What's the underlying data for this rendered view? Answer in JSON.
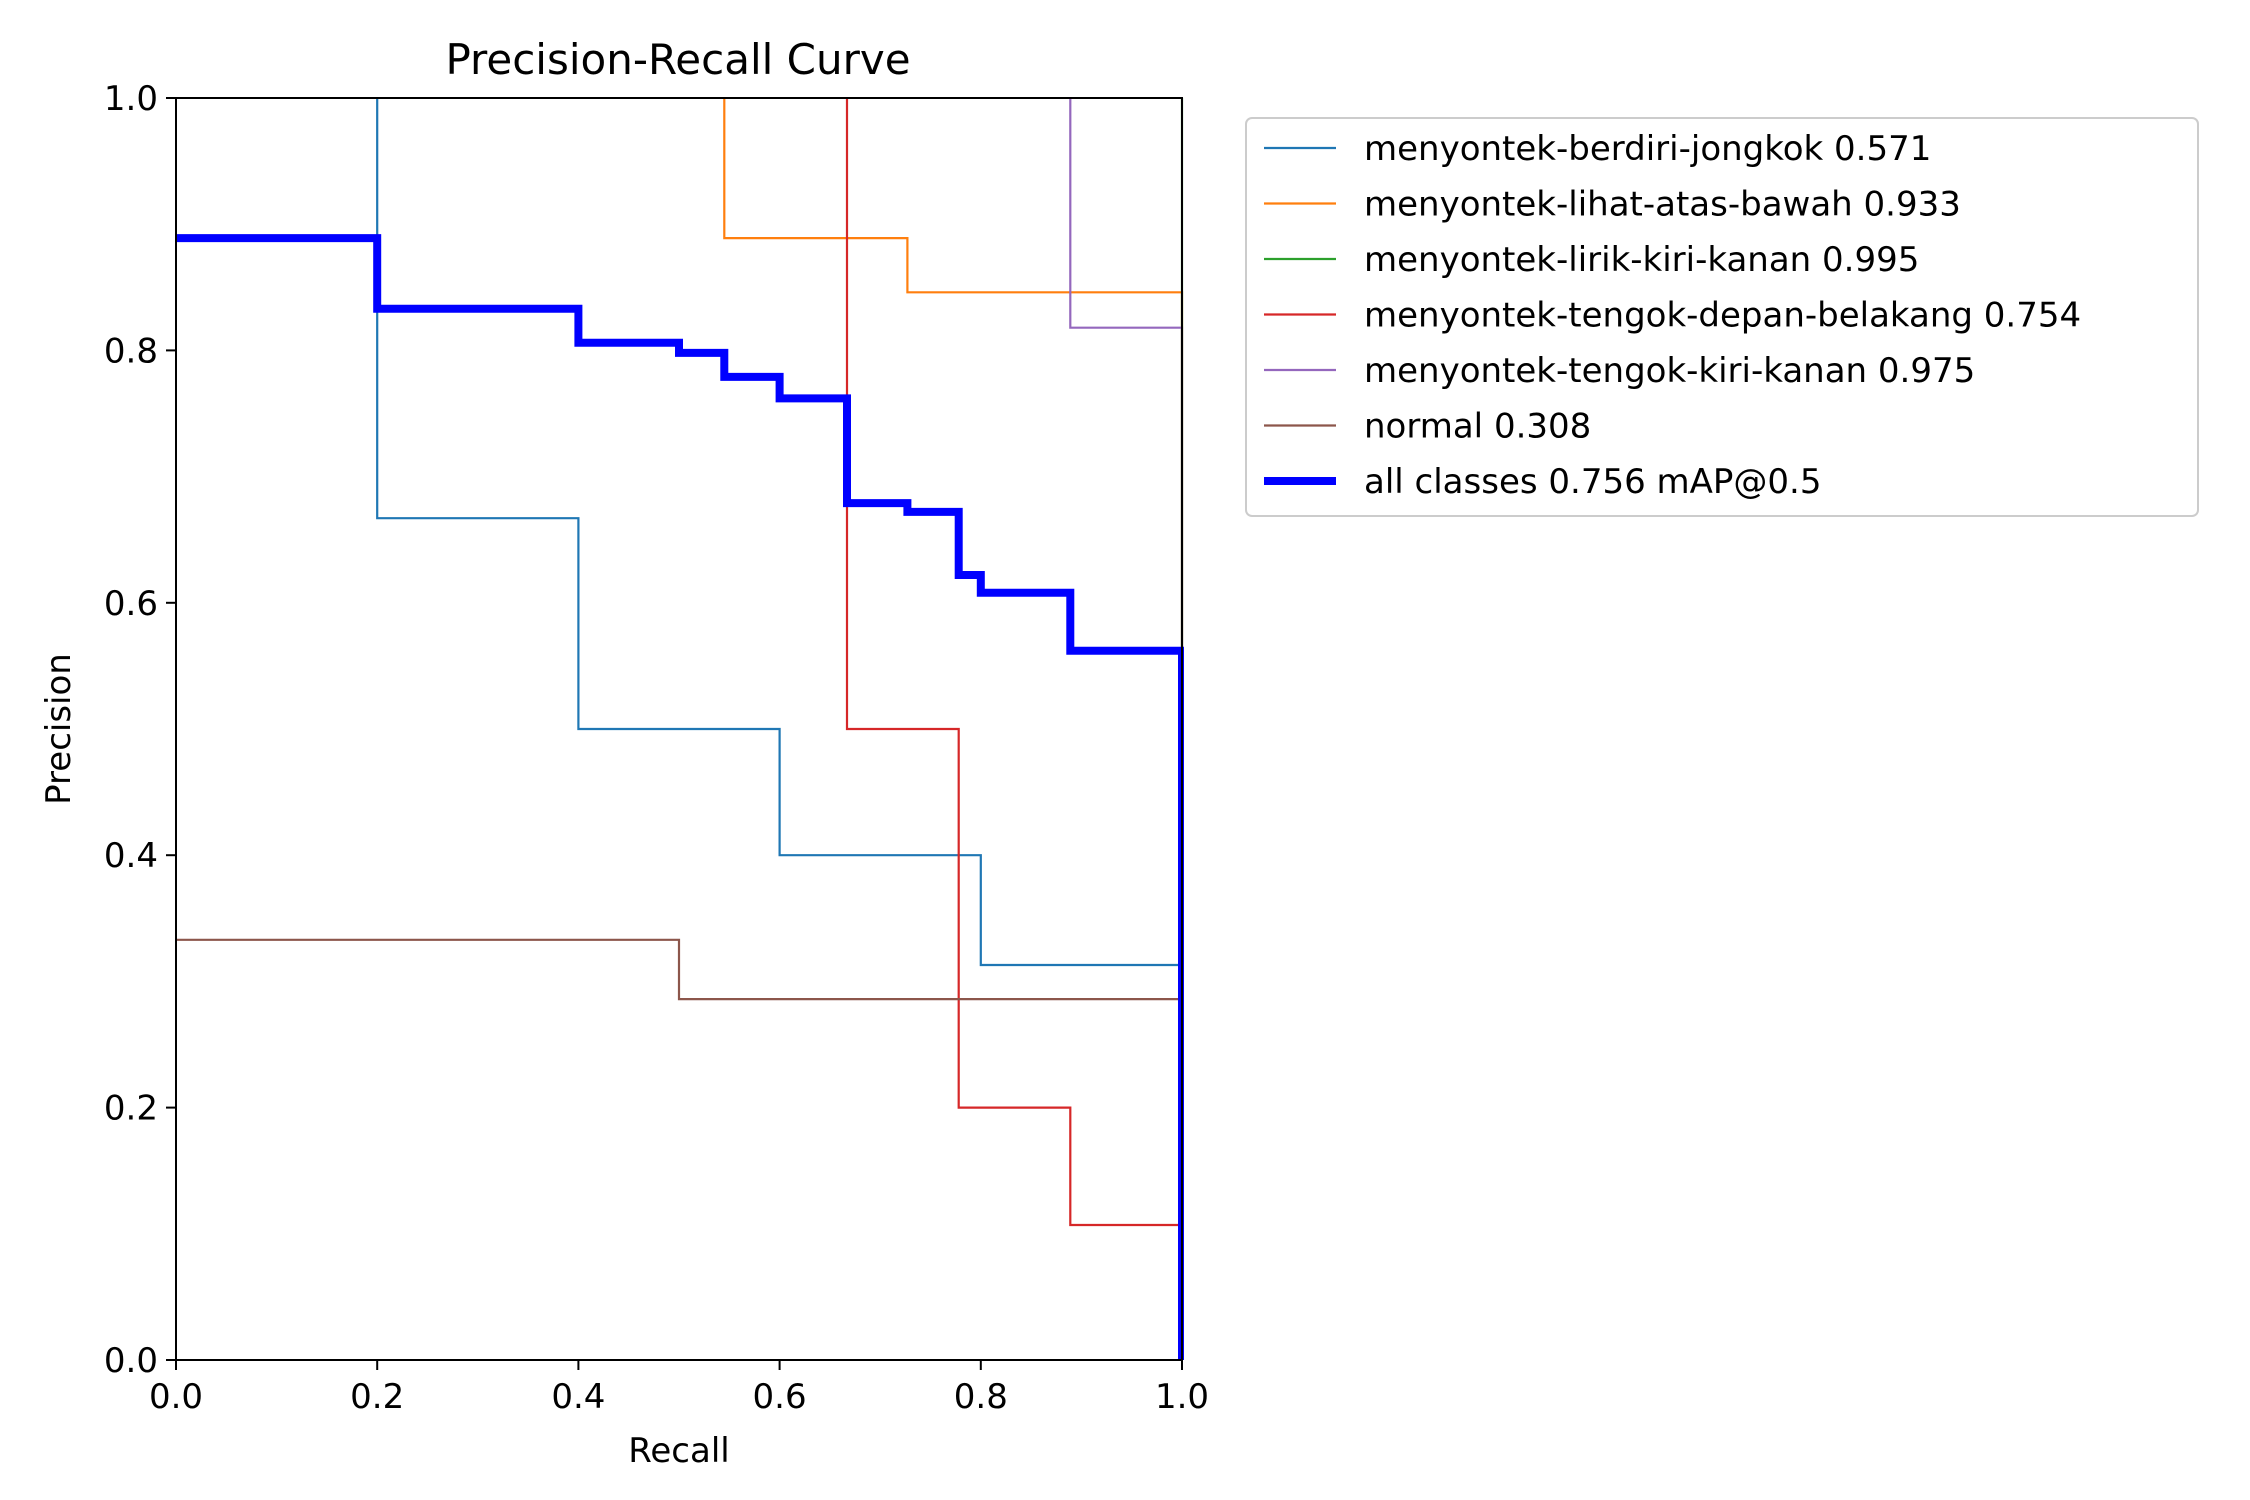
{
  "chart_data": {
    "type": "line",
    "title": "Precision-Recall Curve",
    "xlabel": "Recall",
    "ylabel": "Precision",
    "xlim": [
      0,
      1
    ],
    "ylim": [
      0,
      1
    ],
    "xticks": [
      0.0,
      0.2,
      0.4,
      0.6,
      0.8,
      1.0
    ],
    "yticks": [
      0.0,
      0.2,
      0.4,
      0.6,
      0.8,
      1.0
    ],
    "xtick_labels": [
      "0.0",
      "0.2",
      "0.4",
      "0.6",
      "0.8",
      "1.0"
    ],
    "ytick_labels": [
      "0.0",
      "0.2",
      "0.4",
      "0.6",
      "0.8",
      "1.0"
    ],
    "grid": false,
    "legend_position": "outside right, top",
    "series": [
      {
        "name": "menyontek-berdiri-jongkok 0.571",
        "color": "#1f77b4",
        "width": "thin",
        "points": [
          [
            0.2,
            1.0
          ],
          [
            0.2,
            0.667
          ],
          [
            0.4,
            0.667
          ],
          [
            0.4,
            0.5
          ],
          [
            0.6,
            0.5
          ],
          [
            0.6,
            0.4
          ],
          [
            0.8,
            0.4
          ],
          [
            0.8,
            0.313
          ],
          [
            1.0,
            0.313
          ],
          [
            1.0,
            0.0
          ]
        ]
      },
      {
        "name": "menyontek-lihat-atas-bawah 0.933",
        "color": "#ff7f0e",
        "width": "thin",
        "points": [
          [
            0.545,
            1.0
          ],
          [
            0.545,
            0.889
          ],
          [
            0.727,
            0.889
          ],
          [
            0.727,
            0.846
          ],
          [
            1.0,
            0.846
          ],
          [
            1.0,
            0.0
          ]
        ]
      },
      {
        "name": "menyontek-lirik-kiri-kanan 0.995",
        "color": "#2ca02c",
        "width": "thin",
        "points": [
          [
            1.0,
            1.0
          ],
          [
            1.0,
            0.0
          ]
        ]
      },
      {
        "name": "menyontek-tengok-depan-belakang 0.754",
        "color": "#d62728",
        "width": "thin",
        "points": [
          [
            0.667,
            1.0
          ],
          [
            0.667,
            0.5
          ],
          [
            0.778,
            0.5
          ],
          [
            0.778,
            0.2
          ],
          [
            0.889,
            0.2
          ],
          [
            0.889,
            0.107
          ],
          [
            1.0,
            0.107
          ],
          [
            1.0,
            0.0
          ]
        ]
      },
      {
        "name": "menyontek-tengok-kiri-kanan 0.975",
        "color": "#9467bd",
        "width": "thin",
        "points": [
          [
            0.889,
            1.0
          ],
          [
            0.889,
            0.818
          ],
          [
            1.0,
            0.818
          ],
          [
            1.0,
            0.0
          ]
        ]
      },
      {
        "name": "normal 0.308",
        "color": "#8c564b",
        "width": "thin",
        "points": [
          [
            0.0,
            0.333
          ],
          [
            0.5,
            0.333
          ],
          [
            0.5,
            0.286
          ],
          [
            1.0,
            0.286
          ],
          [
            1.0,
            0.0
          ]
        ]
      },
      {
        "name": "all classes 0.756 mAP@0.5",
        "color": "#0000ff",
        "width": "thick",
        "points": [
          [
            0.0,
            0.889
          ],
          [
            0.2,
            0.889
          ],
          [
            0.2,
            0.833
          ],
          [
            0.4,
            0.833
          ],
          [
            0.4,
            0.806
          ],
          [
            0.5,
            0.806
          ],
          [
            0.5,
            0.798
          ],
          [
            0.545,
            0.798
          ],
          [
            0.545,
            0.779
          ],
          [
            0.6,
            0.779
          ],
          [
            0.6,
            0.762
          ],
          [
            0.667,
            0.762
          ],
          [
            0.667,
            0.679
          ],
          [
            0.727,
            0.679
          ],
          [
            0.727,
            0.672
          ],
          [
            0.778,
            0.672
          ],
          [
            0.778,
            0.622
          ],
          [
            0.8,
            0.622
          ],
          [
            0.8,
            0.608
          ],
          [
            0.889,
            0.608
          ],
          [
            0.889,
            0.562
          ],
          [
            1.0,
            0.562
          ],
          [
            1.0,
            0.0
          ]
        ]
      }
    ]
  }
}
